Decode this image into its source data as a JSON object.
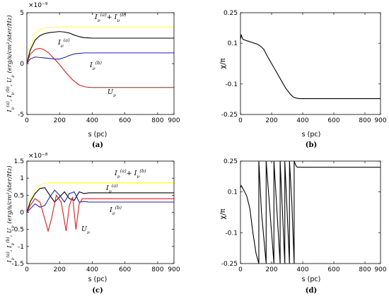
{
  "chart_data": [
    {
      "panel": "(a)",
      "type": "line",
      "xlabel": "s (pc)",
      "ylabel": "I_ν^(a), I_ν^(b), U_ν (erg/s/cm²/ster/Hz)",
      "exponent_label": "×10⁻⁹",
      "xlim": [
        0,
        900
      ],
      "ylim": [
        -5,
        5
      ],
      "xticks": [
        "0",
        "200",
        "400",
        "600",
        "800",
        "900"
      ],
      "yticks": [
        "-5",
        "0",
        "5"
      ],
      "series": [
        {
          "name": "I_ν^(a)+I_ν^(b)",
          "color": "#ffff55",
          "x": [
            0,
            20,
            50,
            80,
            110,
            140,
            170,
            200,
            260,
            320,
            400,
            500,
            600,
            700,
            800,
            900
          ],
          "y": [
            0,
            1.6,
            2.9,
            3.35,
            3.5,
            3.55,
            3.58,
            3.6,
            3.6,
            3.6,
            3.6,
            3.6,
            3.6,
            3.6,
            3.6,
            3.6
          ]
        },
        {
          "name": "I_ν^(a)",
          "color": "#000000",
          "x": [
            0,
            20,
            50,
            80,
            110,
            140,
            170,
            200,
            230,
            260,
            290,
            320,
            350,
            400,
            500,
            600,
            700,
            800,
            900
          ],
          "y": [
            0,
            1.3,
            2.3,
            2.75,
            2.95,
            3.05,
            3.1,
            3.15,
            3.1,
            3.0,
            2.8,
            2.65,
            2.55,
            2.5,
            2.5,
            2.5,
            2.5,
            2.5,
            2.5
          ]
        },
        {
          "name": "I_ν^(b)",
          "color": "#2222aa",
          "x": [
            0,
            20,
            50,
            80,
            110,
            140,
            170,
            200,
            230,
            260,
            290,
            320,
            350,
            400,
            500,
            600,
            700,
            800,
            900
          ],
          "y": [
            0,
            0.45,
            0.65,
            0.6,
            0.55,
            0.5,
            0.45,
            0.45,
            0.6,
            0.8,
            0.95,
            1.0,
            1.05,
            1.05,
            1.05,
            1.05,
            1.05,
            1.05,
            1.05
          ]
        },
        {
          "name": "U_ν",
          "color": "#cc2222",
          "x": [
            0,
            20,
            50,
            80,
            100,
            130,
            160,
            200,
            240,
            280,
            320,
            360,
            400,
            500,
            600,
            700,
            800,
            900
          ],
          "y": [
            0,
            0.9,
            1.4,
            1.5,
            1.4,
            1.1,
            0.6,
            -0.1,
            -0.9,
            -1.6,
            -2.1,
            -2.3,
            -2.35,
            -2.35,
            -2.35,
            -2.35,
            -2.35,
            -2.35
          ]
        }
      ]
    },
    {
      "panel": "(b)",
      "type": "line",
      "xlabel": "s (pc)",
      "ylabel": "χ/π",
      "xlim": [
        0,
        900
      ],
      "ylim": [
        -0.25,
        0.25
      ],
      "xticks": [
        "0",
        "200",
        "400",
        "600",
        "800",
        "900"
      ],
      "yticks": [
        "-0.25",
        "-0.1",
        "0.1",
        "0.25"
      ],
      "series": [
        {
          "color": "#000000",
          "x": [
            0,
            5,
            15,
            30,
            50,
            70,
            90,
            110,
            130,
            150,
            170,
            200,
            230,
            260,
            290,
            320,
            340,
            360,
            380,
            400,
            500,
            600,
            700,
            800,
            900
          ],
          "y": [
            0.12,
            0.14,
            0.12,
            0.115,
            0.11,
            0.105,
            0.1,
            0.095,
            0.085,
            0.07,
            0.04,
            0.0,
            -0.04,
            -0.08,
            -0.12,
            -0.15,
            -0.165,
            -0.17,
            -0.172,
            -0.172,
            -0.172,
            -0.172,
            -0.172,
            -0.172,
            -0.172
          ]
        }
      ]
    },
    {
      "panel": "(c)",
      "type": "line",
      "xlabel": "s (pc)",
      "ylabel": "I_ν^(a), I_ν^(b), U_ν (erg/s/cm²/ster/Hz)",
      "exponent_label": "×10⁻⁸",
      "xlim": [
        0,
        900
      ],
      "ylim": [
        -1.5,
        1.5
      ],
      "xticks": [
        "0",
        "200",
        "400",
        "600",
        "800",
        "900"
      ],
      "yticks": [
        "-1.5",
        "-1",
        "-0.5",
        "0",
        "0.5",
        "1",
        "1.5"
      ],
      "series": [
        {
          "name": "I_ν^(a)+I_ν^(b)",
          "color": "#ffff55",
          "x": [
            0,
            20,
            50,
            80,
            110,
            140,
            200,
            300,
            400,
            500,
            600,
            700,
            800,
            900
          ],
          "y": [
            0,
            0.35,
            0.65,
            0.8,
            0.85,
            0.87,
            0.87,
            0.87,
            0.87,
            0.87,
            0.87,
            0.87,
            0.87,
            0.87
          ]
        },
        {
          "name": "I_ν^(a)",
          "color": "#000000",
          "x": [
            0,
            20,
            50,
            80,
            110,
            140,
            170,
            200,
            230,
            260,
            290,
            320,
            350,
            380,
            400,
            500,
            600,
            700,
            800,
            900
          ],
          "y": [
            0,
            0.3,
            0.55,
            0.7,
            0.72,
            0.5,
            0.3,
            0.45,
            0.6,
            0.4,
            0.35,
            0.6,
            0.55,
            0.57,
            0.57,
            0.57,
            0.57,
            0.57,
            0.57,
            0.57
          ]
        },
        {
          "name": "I_ν^(b)",
          "color": "#2222aa",
          "x": [
            0,
            20,
            50,
            80,
            110,
            140,
            170,
            200,
            230,
            260,
            290,
            320,
            350,
            380,
            400,
            500,
            600,
            700,
            800,
            900
          ],
          "y": [
            0,
            0.1,
            0.25,
            0.15,
            0.2,
            0.45,
            0.65,
            0.5,
            0.3,
            0.55,
            0.6,
            0.3,
            0.32,
            0.3,
            0.3,
            0.3,
            0.3,
            0.3,
            0.3,
            0.3
          ]
        },
        {
          "name": "U_ν",
          "color": "#cc2222",
          "x": [
            0,
            20,
            50,
            80,
            110,
            130,
            150,
            180,
            210,
            240,
            260,
            280,
            300,
            320,
            340,
            360,
            400,
            500,
            600,
            700,
            800,
            900
          ],
          "y": [
            0,
            0.2,
            0.4,
            0.3,
            -0.2,
            -0.55,
            -0.2,
            0.5,
            0.3,
            -0.55,
            0.2,
            0.45,
            -0.5,
            0.25,
            0.4,
            0.4,
            0.4,
            0.4,
            0.4,
            0.4,
            0.4,
            0.4
          ]
        }
      ]
    },
    {
      "panel": "(d)",
      "type": "line",
      "xlabel": "s (pc)",
      "ylabel": "χ/π",
      "xlim": [
        0,
        900
      ],
      "ylim": [
        -0.25,
        0.25
      ],
      "xticks": [
        "0",
        "200",
        "400",
        "600",
        "800",
        "900"
      ],
      "yticks": [
        "-0.25",
        "-0.1",
        "0.1",
        "0.25"
      ],
      "series": [
        {
          "color": "#000000",
          "x": [
            0,
            5,
            20,
            40,
            60,
            80,
            100,
            118,
            118,
            135,
            165,
            165,
            190,
            215,
            215,
            235,
            255,
            255,
            270,
            285,
            285,
            300,
            315,
            315,
            330,
            345,
            345,
            355,
            365,
            400,
            500,
            600,
            700,
            800,
            900
          ],
          "y": [
            0.12,
            0.13,
            0.11,
            0.08,
            0.02,
            -0.1,
            -0.2,
            -0.25,
            0.25,
            0.0,
            -0.25,
            0.25,
            0.0,
            -0.25,
            0.25,
            0.0,
            -0.25,
            0.25,
            0.0,
            -0.25,
            0.25,
            0.0,
            -0.25,
            0.25,
            0.05,
            -0.25,
            0.25,
            0.23,
            0.22,
            0.22,
            0.22,
            0.22,
            0.22,
            0.22,
            0.22
          ]
        }
      ]
    }
  ],
  "labels": {
    "a": {
      "sum": "I_ν^(a)+I_ν^(b)",
      "ia": "I_ν^(a)",
      "ib": "I_ν^(b)",
      "u": "U_ν"
    },
    "c": {
      "sum": "I_ν^(a)+I_ν^(b)",
      "ia": "I_ν^(a)",
      "ib": "I_ν^(b)",
      "u": "U_ν"
    }
  }
}
